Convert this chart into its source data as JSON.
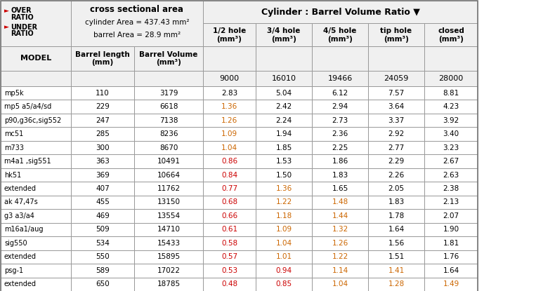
{
  "col_headers_right": [
    "1/2 hole\n(mm³)",
    "3/4 hole\n(mm³)",
    "4/5 hole\n(mm³)",
    "tip hole\n(mm³)",
    "closed\n(mm³)"
  ],
  "ratio_row": [
    "9000",
    "16010",
    "19466",
    "24059",
    "28000"
  ],
  "models": [
    "mp5k",
    "mp5 a5/a4/sd",
    "p90,g36c,sig552",
    "mc51",
    "m733",
    "m4a1 ,sig551",
    "hk51",
    "extended",
    "ak 47,47s",
    "g3 a3/a4",
    "m16a1/aug",
    "sig550",
    "extended",
    "psg-1",
    "extended"
  ],
  "barrel_length": [
    "110",
    "229",
    "247",
    "285",
    "300",
    "363",
    "369",
    "407",
    "455",
    "469",
    "509",
    "534",
    "550",
    "589",
    "650"
  ],
  "barrel_volume": [
    "3179",
    "6618",
    "7138",
    "8236",
    "8670",
    "10491",
    "10664",
    "11762",
    "13150",
    "13554",
    "14710",
    "15433",
    "15895",
    "17022",
    "18785"
  ],
  "data": [
    [
      "2.83",
      "5.04",
      "6.12",
      "7.57",
      "8.81"
    ],
    [
      "1.36",
      "2.42",
      "2.94",
      "3.64",
      "4.23"
    ],
    [
      "1.26",
      "2.24",
      "2.73",
      "3.37",
      "3.92"
    ],
    [
      "1.09",
      "1.94",
      "2.36",
      "2.92",
      "3.40"
    ],
    [
      "1.04",
      "1.85",
      "2.25",
      "2.77",
      "3.23"
    ],
    [
      "0.86",
      "1.53",
      "1.86",
      "2.29",
      "2.67"
    ],
    [
      "0.84",
      "1.50",
      "1.83",
      "2.26",
      "2.63"
    ],
    [
      "0.77",
      "1.36",
      "1.65",
      "2.05",
      "2.38"
    ],
    [
      "0.68",
      "1.22",
      "1.48",
      "1.83",
      "2.13"
    ],
    [
      "0.66",
      "1.18",
      "1.44",
      "1.78",
      "2.07"
    ],
    [
      "0.61",
      "1.09",
      "1.32",
      "1.64",
      "1.90"
    ],
    [
      "0.58",
      "1.04",
      "1.26",
      "1.56",
      "1.81"
    ],
    [
      "0.57",
      "1.01",
      "1.22",
      "1.51",
      "1.76"
    ],
    [
      "0.53",
      "0.94",
      "1.14",
      "1.41",
      "1.64"
    ],
    [
      "0.48",
      "0.85",
      "1.04",
      "1.28",
      "1.49"
    ]
  ],
  "black": "#000000",
  "red": "#cc0000",
  "orange": "#cc6600",
  "bg_color": "#ffffff",
  "cell_bg": "#ffffff",
  "header_bg": "#f0f0f0",
  "border_color": "#999999",
  "brg_color": "#888888"
}
